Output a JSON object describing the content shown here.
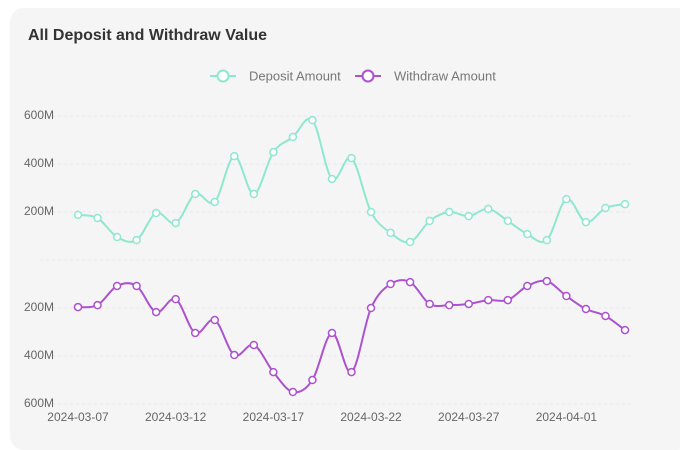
{
  "chart_data": {
    "type": "line",
    "title": "All Deposit and Withdraw Value",
    "categories": [
      "2024-03-07",
      null,
      null,
      null,
      null,
      "2024-03-12",
      null,
      null,
      null,
      null,
      "2024-03-17",
      null,
      null,
      null,
      null,
      "2024-03-22",
      null,
      null,
      null,
      null,
      "2024-03-27",
      null,
      null,
      null,
      null,
      "2024-04-01",
      null,
      null,
      null
    ],
    "series": [
      {
        "name": "Deposit Amount",
        "color": "#8ee8cf",
        "values": [
          188,
          175,
          96,
          83,
          196,
          154,
          275,
          242,
          433,
          275,
          450,
          513,
          583,
          338,
          425,
          200,
          113,
          75,
          163,
          200,
          183,
          213,
          163,
          108,
          83,
          254,
          158,
          217,
          233
        ]
      },
      {
        "name": "Withdraw Amount",
        "color": "#ad52cf",
        "values": [
          -196,
          -188,
          -108,
          -108,
          -217,
          -163,
          -304,
          -250,
          -396,
          -354,
          -467,
          -550,
          -500,
          -304,
          -467,
          -200,
          -100,
          -92,
          -183,
          -188,
          -183,
          -167,
          -167,
          -108,
          -88,
          -150,
          -204,
          -233,
          -292
        ]
      }
    ],
    "ylim": [
      -625,
      667
    ],
    "yticks": [
      {
        "value": 600,
        "label": "600M"
      },
      {
        "value": 400,
        "label": "400M"
      },
      {
        "value": 200,
        "label": "200M"
      },
      0,
      {
        "value": -200,
        "label": "200M"
      },
      {
        "value": -400,
        "label": "400M"
      },
      {
        "value": -600,
        "label": "600M"
      }
    ],
    "grid": true
  }
}
